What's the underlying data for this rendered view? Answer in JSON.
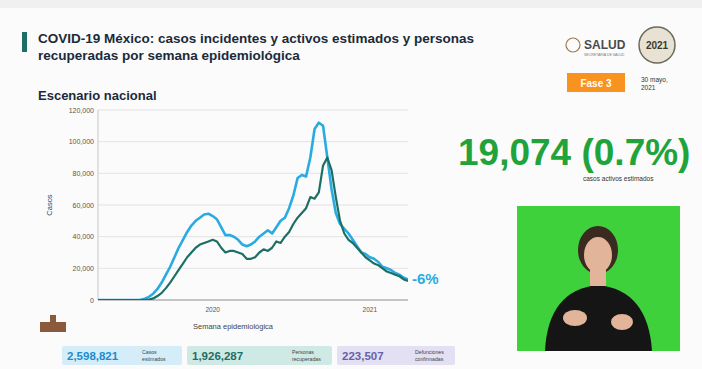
{
  "header": {
    "logo": "SALUD",
    "logo_subtitle": "SECRETARÍA DE SALUD",
    "year_badge": "2021",
    "phase": "Fase 3",
    "date": [
      "30 mayo,",
      "2021"
    ]
  },
  "highlight": {
    "value": "19,074 (0.7%)",
    "label": "casos activos estimados"
  },
  "summary": [
    {
      "value": "2,598,821",
      "label": [
        "Casos",
        "estimados"
      ]
    },
    {
      "value": "1,926,287",
      "label": [
        "Personas",
        "recuperadas"
      ]
    },
    {
      "value": "223,507",
      "label": [
        "Defunciones",
        "confirmadas"
      ]
    }
  ],
  "chart_data": {
    "type": "line",
    "title": "COVID-19 México: casos incidentes y activos estimados y personas recuperadas por semana epidemiológica",
    "subtitle": "Escenario nacional",
    "x_label": "Semana epidemiológica",
    "y_label": "Casos",
    "categories": [
      null,
      null,
      null,
      null,
      null,
      null,
      null,
      null,
      null,
      null,
      null,
      null,
      null,
      null,
      null,
      null,
      null,
      null,
      null,
      null,
      null,
      null,
      null,
      null,
      null,
      null,
      null,
      "2020",
      null,
      null,
      null,
      null,
      null,
      null,
      null,
      null,
      null,
      null,
      null,
      null,
      null,
      null,
      null,
      null,
      null,
      null,
      null,
      null,
      null,
      null,
      null,
      null,
      null,
      null,
      null,
      null,
      null,
      null,
      null,
      null,
      null,
      null,
      null,
      null,
      "2021",
      null,
      null,
      null,
      null,
      null,
      null,
      null,
      null,
      null
    ],
    "series": [
      {
        "color": "#29abe2",
        "values": [
          0,
          0,
          0,
          0,
          0,
          0,
          0,
          0,
          0,
          0,
          200,
          800,
          2000,
          4000,
          7000,
          11000,
          16000,
          21000,
          27000,
          33000,
          38000,
          43000,
          47000,
          50000,
          52000,
          54000,
          54500,
          53000,
          51000,
          46000,
          41000,
          41000,
          40000,
          38000,
          35000,
          34000,
          35000,
          37000,
          40000,
          42000,
          44000,
          42000,
          46000,
          50000,
          52000,
          58000,
          66000,
          77000,
          79000,
          78000,
          90000,
          108000,
          112000,
          110000,
          90000,
          70000,
          55000,
          48000,
          45000,
          42000,
          38000,
          34000,
          30000,
          29000,
          27000,
          26000,
          24000,
          21000,
          20000,
          19000,
          17000,
          16000,
          14000,
          13000
        ]
      },
      {
        "color": "#1d6f66",
        "values": [
          0,
          0,
          0,
          0,
          0,
          0,
          0,
          0,
          0,
          0,
          0,
          0,
          300,
          1000,
          2500,
          4500,
          7500,
          11000,
          15000,
          19000,
          23000,
          27000,
          30000,
          33000,
          35000,
          36000,
          37000,
          38000,
          37000,
          33000,
          30000,
          31000,
          31000,
          30000,
          29000,
          26000,
          26000,
          27000,
          30000,
          32000,
          31000,
          33000,
          37000,
          36000,
          40000,
          43000,
          48000,
          52000,
          55000,
          58000,
          65000,
          64000,
          68000,
          85000,
          90000,
          82000,
          65000,
          50000,
          42000,
          38000,
          36000,
          33000,
          30000,
          27000,
          25000,
          23000,
          22000,
          20000,
          18000,
          17000,
          16000,
          15000,
          13000,
          12000
        ]
      }
    ],
    "ylim": [
      0,
      120000
    ],
    "yticks": [
      0,
      {
        "value": 20000,
        "label": "20,000"
      },
      {
        "value": 40000,
        "label": "40,000"
      },
      {
        "value": 60000,
        "label": "60,000"
      },
      {
        "value": 80000,
        "label": "80,000"
      },
      {
        "value": 100000,
        "label": "100,000"
      },
      {
        "value": 120000,
        "label": "120,000"
      }
    ],
    "grid": true,
    "annotations": [
      {
        "text": "-6%"
      }
    ]
  }
}
